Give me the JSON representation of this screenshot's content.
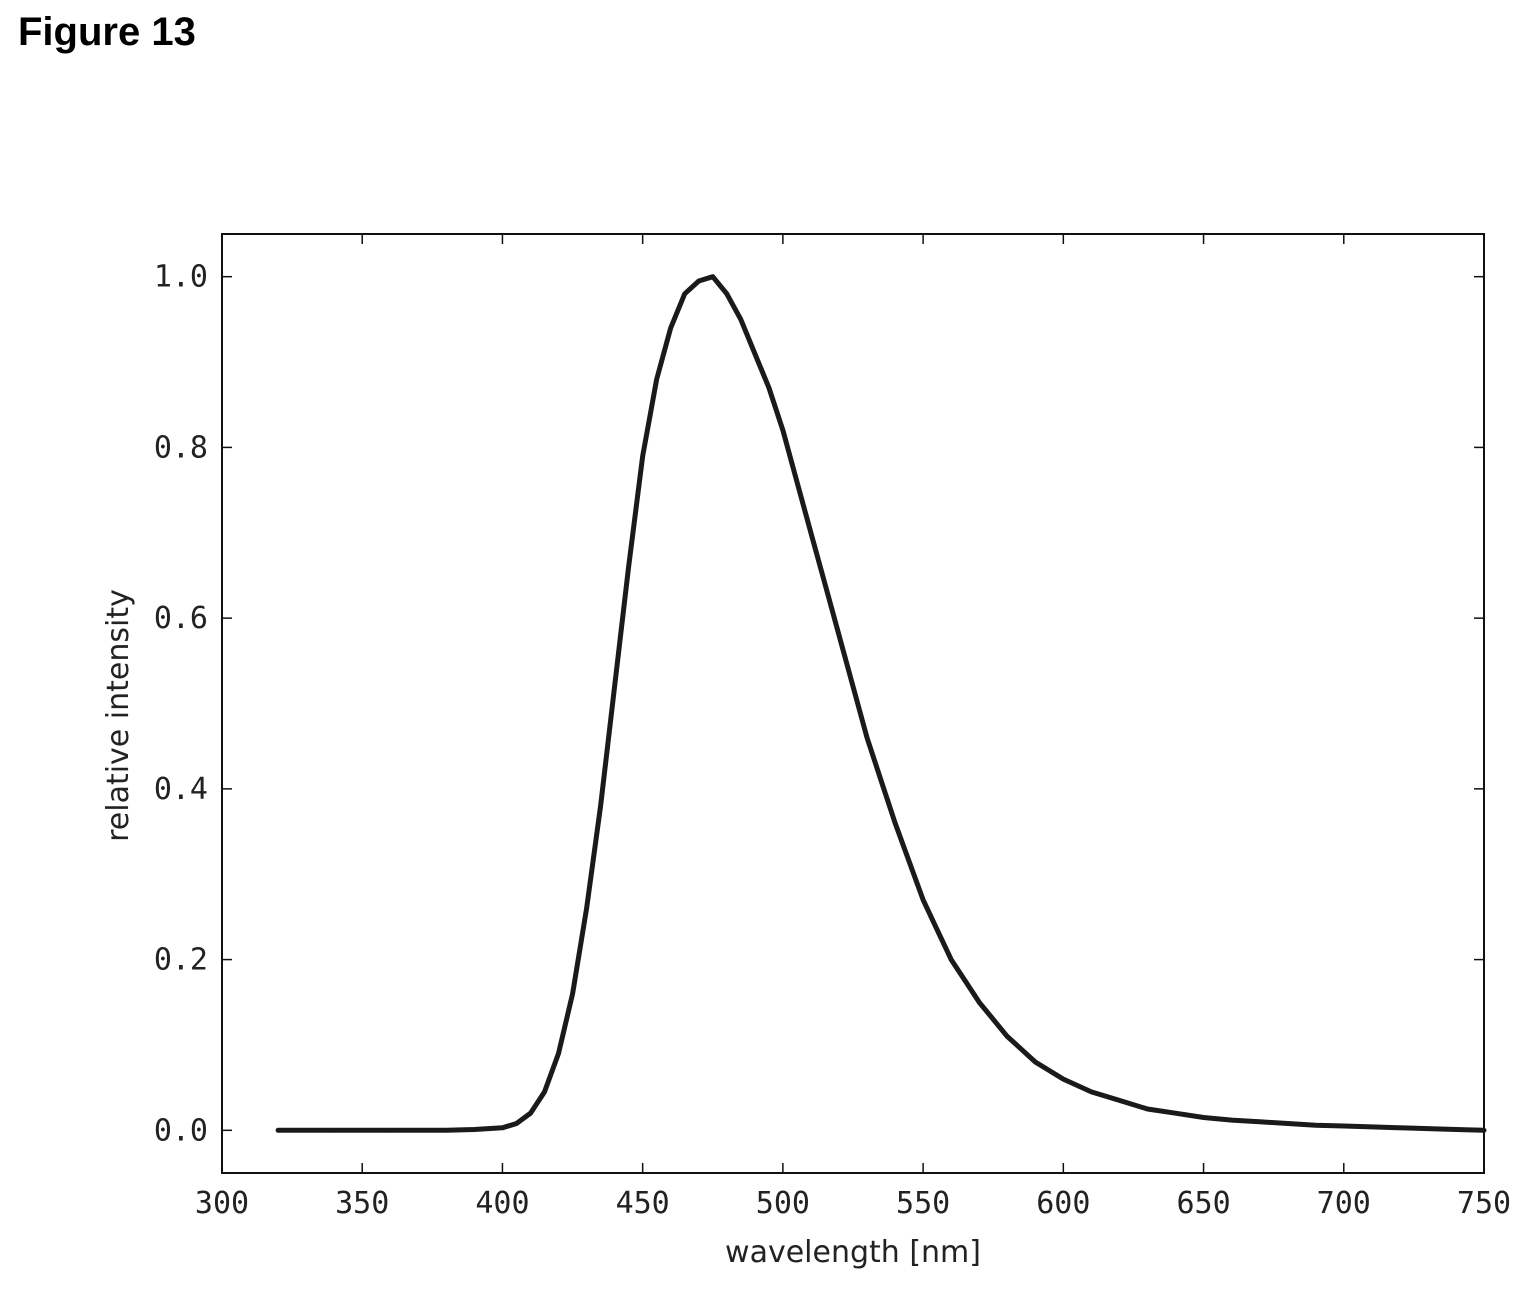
{
  "figure_title": "Figure 13",
  "chart_data": {
    "type": "line",
    "title": "",
    "xlabel": "wavelength [nm]",
    "ylabel": "relative intensity",
    "xlim": [
      300,
      750
    ],
    "ylim": [
      -0.05,
      1.05
    ],
    "xticks": [
      300,
      350,
      400,
      450,
      500,
      550,
      600,
      650,
      700,
      750
    ],
    "xtick_labels": [
      "300",
      "350",
      "400",
      "450",
      "500",
      "550",
      "600",
      "650",
      "700",
      "750"
    ],
    "yticks": [
      0.0,
      0.2,
      0.4,
      0.6,
      0.8,
      1.0
    ],
    "ytick_labels": [
      "0.0",
      "0.2",
      "0.4",
      "0.6",
      "0.8",
      "1.0"
    ],
    "grid": false,
    "legend": "none",
    "series": [
      {
        "color": "#1a1a1a",
        "x": [
          320,
          340,
          360,
          380,
          390,
          400,
          405,
          410,
          415,
          420,
          425,
          430,
          435,
          440,
          445,
          450,
          455,
          460,
          465,
          470,
          475,
          480,
          485,
          490,
          495,
          500,
          505,
          510,
          515,
          520,
          525,
          530,
          535,
          540,
          545,
          550,
          555,
          560,
          565,
          570,
          575,
          580,
          585,
          590,
          600,
          610,
          620,
          630,
          640,
          650,
          660,
          670,
          680,
          690,
          700,
          710,
          720,
          730,
          740,
          750
        ],
        "y": [
          0.0,
          0.0,
          0.0,
          0.0,
          0.001,
          0.003,
          0.008,
          0.02,
          0.045,
          0.09,
          0.16,
          0.26,
          0.38,
          0.52,
          0.66,
          0.79,
          0.88,
          0.94,
          0.98,
          0.995,
          1.0,
          0.98,
          0.95,
          0.91,
          0.87,
          0.82,
          0.76,
          0.7,
          0.64,
          0.58,
          0.52,
          0.46,
          0.41,
          0.36,
          0.315,
          0.27,
          0.235,
          0.2,
          0.175,
          0.15,
          0.13,
          0.11,
          0.095,
          0.08,
          0.06,
          0.045,
          0.035,
          0.025,
          0.02,
          0.015,
          0.012,
          0.01,
          0.008,
          0.006,
          0.005,
          0.004,
          0.003,
          0.002,
          0.001,
          0.0
        ]
      }
    ]
  }
}
